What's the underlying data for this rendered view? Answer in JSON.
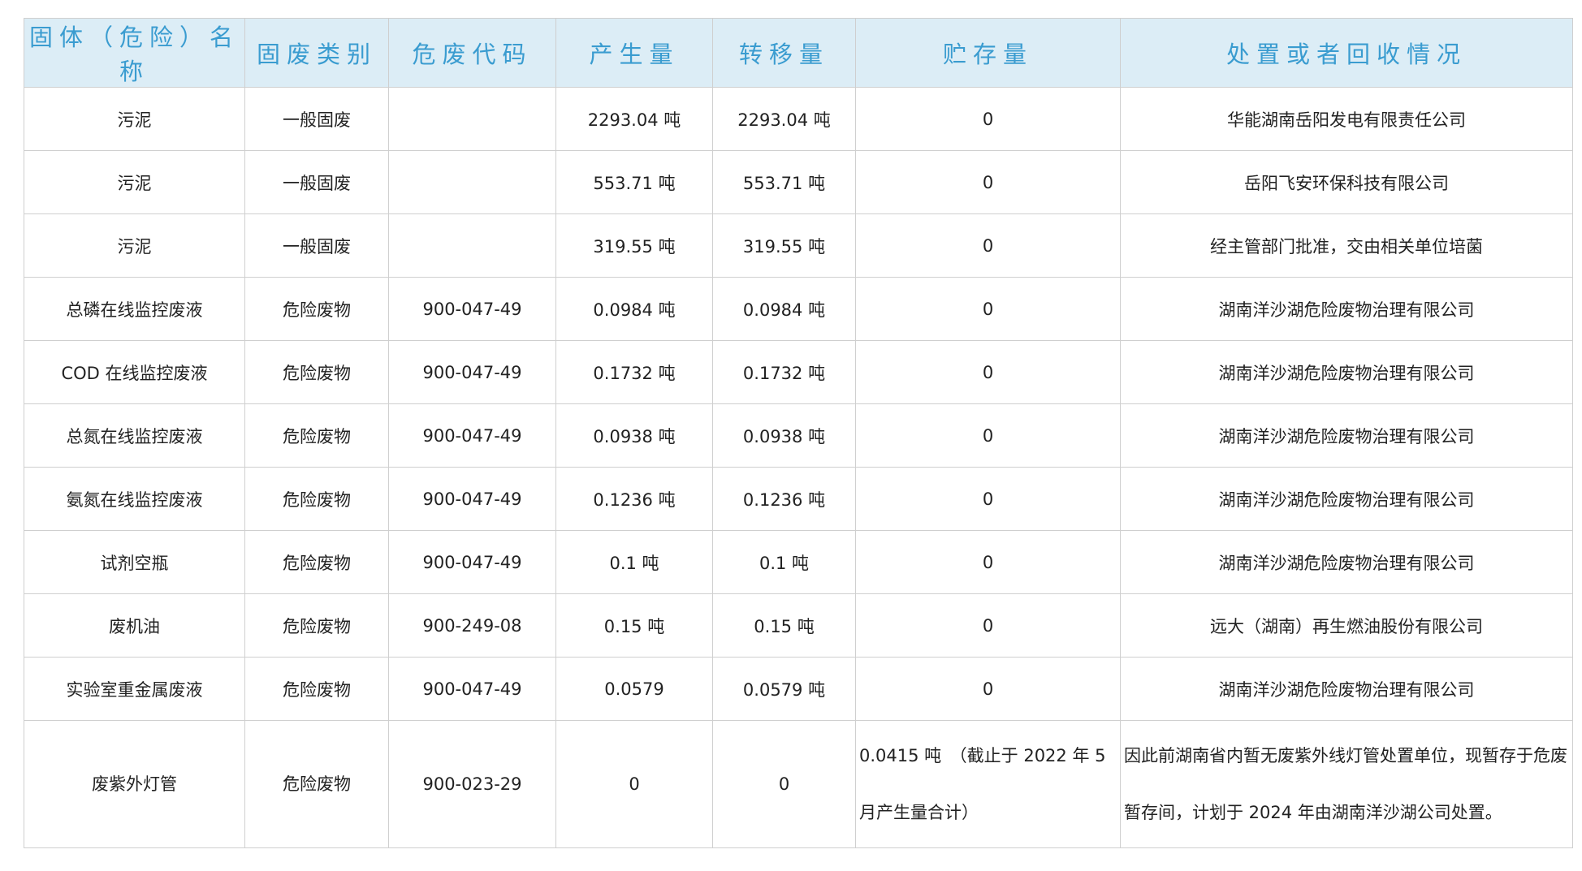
{
  "table": {
    "header": [
      "固体（危险）名称",
      "固废类别",
      "危废代码",
      "产生量",
      "转移量",
      "贮存量",
      "处置或者回收情况"
    ],
    "rows": [
      [
        "污泥",
        "一般固废",
        null,
        "2293.04 吨",
        "2293.04 吨",
        "0",
        "华能湖南岳阳发电有限责任公司"
      ],
      [
        "污泥",
        "一般固废",
        null,
        "553.71 吨",
        "553.71 吨",
        "0",
        "岳阳飞安环保科技有限公司"
      ],
      [
        "污泥",
        "一般固废",
        null,
        "319.55 吨",
        "319.55 吨",
        "0",
        "经主管部门批准，交由相关单位培菌"
      ],
      [
        "总磷在线监控废液",
        "危险废物",
        "900-047-49",
        "0.0984 吨",
        "0.0984 吨",
        "0",
        "湖南洋沙湖危险废物治理有限公司"
      ],
      [
        "COD 在线监控废液",
        "危险废物",
        "900-047-49",
        "0.1732 吨",
        "0.1732 吨",
        "0",
        "湖南洋沙湖危险废物治理有限公司"
      ],
      [
        "总氮在线监控废液",
        "危险废物",
        "900-047-49",
        "0.0938 吨",
        "0.0938 吨",
        "0",
        "湖南洋沙湖危险废物治理有限公司"
      ],
      [
        "氨氮在线监控废液",
        "危险废物",
        "900-047-49",
        "0.1236 吨",
        "0.1236 吨",
        "0",
        "湖南洋沙湖危险废物治理有限公司"
      ],
      [
        "试剂空瓶",
        "危险废物",
        "900-047-49",
        "0.1 吨",
        "0.1 吨",
        "0",
        "湖南洋沙湖危险废物治理有限公司"
      ],
      [
        "废机油",
        "危险废物",
        "900-249-08",
        "0.15 吨",
        "0.15 吨",
        "0",
        "远大（湖南）再生燃油股份有限公司"
      ],
      [
        "实验室重金属废液",
        "危险废物",
        "900-047-49",
        "0.0579",
        "0.0579 吨",
        "0",
        "湖南洋沙湖危险废物治理有限公司"
      ],
      [
        "废紫外灯管",
        "危险废物",
        "900-023-29",
        "0",
        "0",
        "0.0415 吨　（截止于 2022 年 5 月产生量合计）",
        "因此前湖南省内暂无废紫外线灯管处置单位，现暂存于危废暂存间，计划于 2024 年由湖南洋沙湖公司处置。"
      ]
    ]
  }
}
